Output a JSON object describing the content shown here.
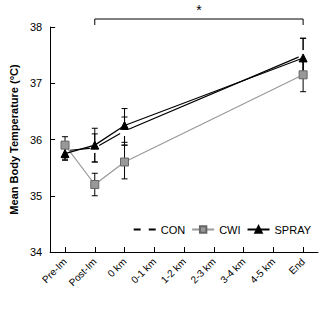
{
  "chart_data": {
    "type": "line",
    "y_label": "Mean Body Temperature (°C)",
    "categories": [
      "Pre-Im",
      "Post-Im",
      "0 km",
      "0-1 km",
      "1-2 km",
      "2-3 km",
      "3-4 km",
      "4-5 km",
      "End"
    ],
    "series": [
      {
        "name": "CON",
        "color": "#000000",
        "marker": "emptyCircle",
        "values": [
          35.8,
          35.85,
          36.15,
          null,
          null,
          null,
          null,
          null,
          37.5
        ],
        "errors": [
          0.15,
          0.25,
          0.25,
          null,
          null,
          null,
          null,
          null,
          0.3
        ]
      },
      {
        "name": "CWI",
        "color": "#999999",
        "marker": "square",
        "values": [
          35.9,
          35.2,
          35.6,
          null,
          null,
          null,
          null,
          null,
          37.15
        ],
        "errors": [
          0.15,
          0.2,
          0.3,
          null,
          null,
          null,
          null,
          null,
          0.3
        ]
      },
      {
        "name": "SPRAY",
        "color": "#000000",
        "marker": "triangle",
        "values": [
          35.75,
          35.9,
          36.25,
          null,
          null,
          null,
          null,
          null,
          37.45
        ],
        "errors": [
          0.12,
          0.3,
          0.3,
          null,
          null,
          null,
          null,
          null,
          0.35
        ]
      }
    ],
    "ylim": [
      34,
      38
    ],
    "yticks": [
      34,
      35,
      36,
      37,
      38
    ],
    "legend": "lower right",
    "annotations": [
      {
        "text": "*",
        "from": "Post-Im",
        "to": "End"
      }
    ]
  }
}
